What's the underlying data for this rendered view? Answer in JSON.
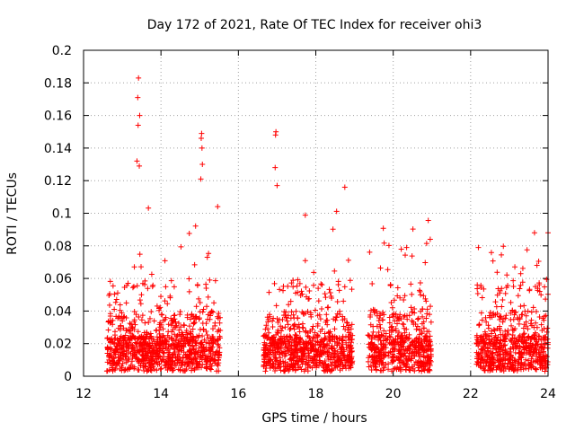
{
  "chart_data": {
    "type": "scatter",
    "title": "Day 172 of 2021, Rate Of TEC Index for receiver ohi3",
    "xlabel": "GPS time / hours",
    "ylabel": "ROTI / TECUs",
    "xlim": [
      12,
      24
    ],
    "ylim": [
      0,
      0.2
    ],
    "x_ticks": [
      "12",
      "14",
      "16",
      "18",
      "20",
      "22",
      "24"
    ],
    "y_ticks": [
      "0",
      "0.02",
      "0.04",
      "0.06",
      "0.08",
      "0.1",
      "0.12",
      "0.14",
      "0.16",
      "0.18",
      "0.2"
    ],
    "grid": true,
    "marker": "plus",
    "color": "#ff0000",
    "highlighted_points": [
      {
        "x": 13.42,
        "y": 0.183
      },
      {
        "x": 13.4,
        "y": 0.171
      },
      {
        "x": 13.45,
        "y": 0.16
      },
      {
        "x": 13.41,
        "y": 0.154
      },
      {
        "x": 13.38,
        "y": 0.132
      },
      {
        "x": 13.44,
        "y": 0.129
      },
      {
        "x": 15.05,
        "y": 0.149
      },
      {
        "x": 15.04,
        "y": 0.146
      },
      {
        "x": 15.06,
        "y": 0.14
      },
      {
        "x": 15.07,
        "y": 0.13
      },
      {
        "x": 15.03,
        "y": 0.121
      },
      {
        "x": 16.97,
        "y": 0.15
      },
      {
        "x": 16.96,
        "y": 0.148
      },
      {
        "x": 16.95,
        "y": 0.128
      },
      {
        "x": 17.0,
        "y": 0.117
      },
      {
        "x": 18.75,
        "y": 0.116
      },
      {
        "x": 24.0,
        "y": 0.088
      },
      {
        "x": 23.65,
        "y": 0.088
      },
      {
        "x": 22.2,
        "y": 0.079
      }
    ],
    "dense_ranges": [
      {
        "x_start": 12.6,
        "x_end": 15.55,
        "y_max": 0.11
      },
      {
        "x_start": 16.65,
        "x_end": 18.95,
        "y_max": 0.105
      },
      {
        "x_start": 19.35,
        "x_end": 20.98,
        "y_max": 0.097
      },
      {
        "x_start": 22.15,
        "x_end": 24.0,
        "y_max": 0.08
      }
    ]
  }
}
